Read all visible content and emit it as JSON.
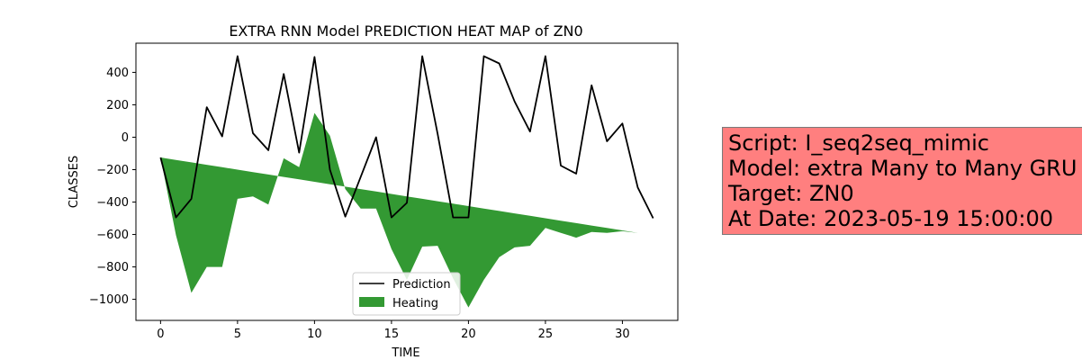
{
  "chart_data": {
    "type": "line",
    "title": "EXTRA RNN Model PREDICTION HEAT MAP of ZN0",
    "xlabel": "TIME",
    "ylabel": "CLASSES",
    "xlim": [
      -1.6,
      33.6
    ],
    "ylim": [
      -1130,
      580
    ],
    "x_ticks": [
      0,
      5,
      10,
      15,
      20,
      25,
      30
    ],
    "y_ticks": [
      -1000,
      -800,
      -600,
      -400,
      -200,
      0,
      200,
      400
    ],
    "grid": false,
    "legend_position": "lower center",
    "series": [
      {
        "name": "Prediction",
        "kind": "line",
        "color": "#000000",
        "x": [
          0,
          1,
          2,
          3,
          4,
          5,
          6,
          7,
          8,
          9,
          10,
          11,
          12,
          13,
          14,
          15,
          16,
          17,
          18,
          19,
          20,
          21,
          22,
          23,
          24,
          25,
          26,
          27,
          28,
          29,
          30,
          31,
          32
        ],
        "values": [
          -125,
          -495,
          -380,
          185,
          5,
          500,
          25,
          -80,
          390,
          -95,
          495,
          -200,
          -490,
          -245,
          0,
          -495,
          -405,
          500,
          20,
          -495,
          -495,
          500,
          455,
          220,
          35,
          500,
          -175,
          -225,
          320,
          -25,
          85,
          -310,
          -500
        ]
      },
      {
        "name": "Heating",
        "kind": "fill_between",
        "color": "#339933",
        "x": [
          0,
          1,
          2,
          3,
          4,
          5,
          6,
          7,
          8,
          9,
          10,
          11,
          12,
          13,
          14,
          15,
          16,
          17,
          18,
          19,
          20,
          21,
          22,
          23,
          24,
          25,
          26,
          27,
          28,
          29,
          30,
          31,
          32
        ],
        "y1": [
          -125,
          -605,
          -960,
          -800,
          -800,
          -380,
          -365,
          -415,
          -130,
          -185,
          150,
          10,
          -320,
          -440,
          -440,
          -690,
          -880,
          -675,
          -670,
          -870,
          -1050,
          -880,
          -740,
          -680,
          -670,
          -560,
          -590,
          -620,
          -585,
          -590,
          -580,
          -590,
          -590
        ],
        "y2": [
          -125,
          -140,
          -155,
          -170,
          -185,
          -200,
          -215,
          -230,
          -245,
          -260,
          -275,
          -290,
          -305,
          -320,
          -335,
          -350,
          -365,
          -380,
          -395,
          -410,
          -425,
          -440,
          -455,
          -470,
          -485,
          -500,
          -515,
          -530,
          -545,
          -560,
          -575,
          -590,
          -590
        ]
      }
    ]
  },
  "info_box": {
    "lines": [
      "Script: I_seq2seq_mimic",
      "Model: extra Many to Many GRU",
      "Target: ZN0",
      "At Date: 2023-05-19 15:00:00"
    ],
    "background": "#ff7f7f"
  }
}
